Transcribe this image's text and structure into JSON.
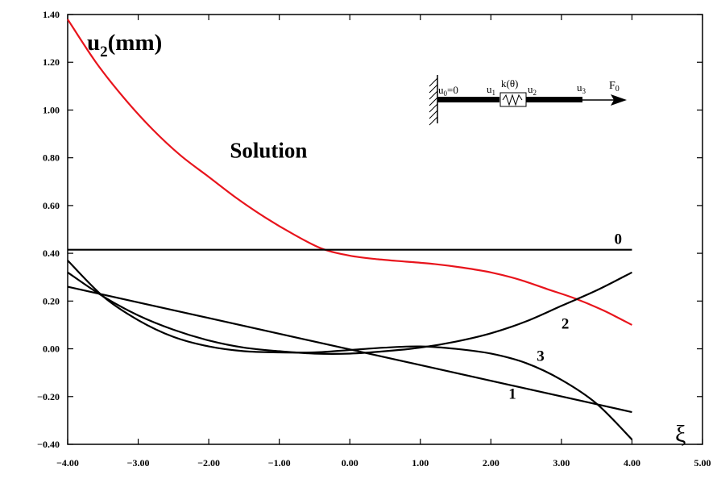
{
  "chart_data": {
    "type": "line",
    "title": "",
    "xlabel": "ξ",
    "ylabel_main": "u",
    "ylabel_sub": "2",
    "ylabel_unit": "(mm)",
    "xlim": [
      -4.0,
      5.0
    ],
    "ylim": [
      -0.4,
      1.4
    ],
    "grid": false,
    "x_ticks": [
      -4.0,
      -3.0,
      -2.0,
      -1.0,
      0.0,
      1.0,
      2.0,
      3.0,
      4.0,
      5.0
    ],
    "x_tick_labels": [
      "−4.00",
      "−3.00",
      "−2.00",
      "−1.00",
      "0.00",
      "1.00",
      "2.00",
      "3.00",
      "4.00",
      "5.00"
    ],
    "y_ticks": [
      -0.4,
      -0.2,
      0.0,
      0.2,
      0.4,
      0.6,
      0.8,
      1.0,
      1.2,
      1.4
    ],
    "y_tick_labels": [
      "−0.40",
      "−0.20",
      "0.00",
      "0.20",
      "0.40",
      "0.60",
      "0.80",
      "1.00",
      "1.20",
      "1.40"
    ],
    "series": [
      {
        "name": "Solution",
        "color": "#e8141c",
        "label_pos": [
          -1.7,
          0.8
        ],
        "x": [
          -4.0,
          -3.6,
          -3.2,
          -2.8,
          -2.4,
          -2.0,
          -1.6,
          -1.2,
          -0.8,
          -0.4,
          0.0,
          0.4,
          0.8,
          1.2,
          1.6,
          2.0,
          2.4,
          2.8,
          3.2,
          3.6,
          4.0
        ],
        "y": [
          1.38,
          1.2,
          1.05,
          0.92,
          0.81,
          0.72,
          0.63,
          0.55,
          0.48,
          0.42,
          0.39,
          0.375,
          0.365,
          0.355,
          0.34,
          0.32,
          0.29,
          0.25,
          0.21,
          0.16,
          0.1
        ]
      },
      {
        "name": "0",
        "color": "#000000",
        "label_pos": [
          3.75,
          0.44
        ],
        "x": [
          -4.0,
          4.0
        ],
        "y": [
          0.415,
          0.415
        ]
      },
      {
        "name": "1",
        "color": "#000000",
        "label_pos": [
          2.25,
          -0.21
        ],
        "x": [
          -4.0,
          4.0
        ],
        "y": [
          0.26,
          -0.265
        ]
      },
      {
        "name": "2",
        "color": "#000000",
        "label_pos": [
          3.0,
          0.085
        ],
        "x": [
          -4.0,
          -3.5,
          -3.0,
          -2.5,
          -2.0,
          -1.5,
          -1.0,
          -0.5,
          0.0,
          0.5,
          1.0,
          1.5,
          2.0,
          2.5,
          3.0,
          3.5,
          4.0
        ],
        "y": [
          0.32,
          0.22,
          0.14,
          0.08,
          0.035,
          0.005,
          -0.01,
          -0.02,
          -0.02,
          -0.01,
          0.005,
          0.03,
          0.065,
          0.115,
          0.18,
          0.245,
          0.32
        ]
      },
      {
        "name": "3",
        "color": "#000000",
        "label_pos": [
          2.65,
          -0.05
        ],
        "x": [
          -4.0,
          -3.5,
          -3.0,
          -2.5,
          -2.0,
          -1.5,
          -1.0,
          -0.5,
          0.0,
          0.5,
          1.0,
          1.5,
          2.0,
          2.5,
          3.0,
          3.5,
          4.0
        ],
        "y": [
          0.37,
          0.22,
          0.12,
          0.05,
          0.01,
          -0.01,
          -0.015,
          -0.015,
          -0.005,
          0.005,
          0.01,
          0.0,
          -0.02,
          -0.06,
          -0.13,
          -0.23,
          -0.38
        ]
      }
    ],
    "inset_labels": {
      "u0": "u",
      "u0_sub": "0",
      "u0_eq": "=0",
      "u1": "u",
      "u1_sub": "1",
      "k": "k(θ)",
      "u2": "u",
      "u2_sub": "2",
      "u3": "u",
      "u3_sub": "3",
      "F": "F",
      "F_sub": "0"
    }
  }
}
